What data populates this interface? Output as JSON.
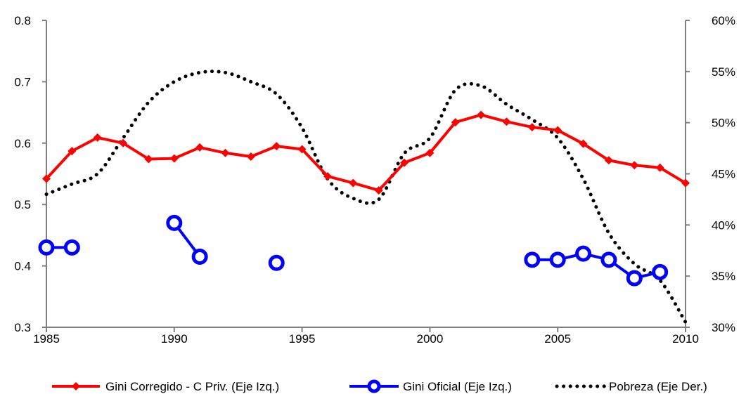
{
  "chart_data": {
    "type": "line",
    "title": "",
    "xlabel": "",
    "ylabel_left": "",
    "ylabel_right": "",
    "x_ticks": [
      "1985",
      "1990",
      "1995",
      "2000",
      "2005",
      "2010"
    ],
    "xlim": [
      1985,
      2010
    ],
    "ylim_left": [
      0.3,
      0.8
    ],
    "y_left_ticks": [
      "0.3",
      "0.4",
      "0.5",
      "0.6",
      "0.7",
      "0.8"
    ],
    "ylim_right": [
      30,
      60
    ],
    "y_right_ticks": [
      "30%",
      "35%",
      "40%",
      "45%",
      "50%",
      "55%",
      "60%"
    ],
    "grid": false,
    "legend_position": "bottom",
    "series": [
      {
        "name": "Gini Corregido - C Priv. (Eje Izq.)",
        "axis": "left",
        "color": "#ff0000",
        "style": "solid-diamond",
        "x": [
          1985,
          1986,
          1987,
          1988,
          1989,
          1990,
          1991,
          1992,
          1993,
          1994,
          1995,
          1996,
          1997,
          1998,
          1999,
          2000,
          2001,
          2002,
          2003,
          2004,
          2005,
          2006,
          2007,
          2008,
          2009,
          2010
        ],
        "y": [
          0.542,
          0.587,
          0.609,
          0.6,
          0.574,
          0.575,
          0.593,
          0.584,
          0.578,
          0.595,
          0.59,
          0.546,
          0.535,
          0.523,
          0.568,
          0.584,
          0.634,
          0.646,
          0.635,
          0.626,
          0.621,
          0.599,
          0.572,
          0.564,
          0.56,
          0.535
        ]
      },
      {
        "name": "Gini Oficial (Eje Izq.)",
        "axis": "left",
        "color": "#0000ff",
        "style": "solid-ring",
        "segments": [
          {
            "x": [
              1985,
              1986
            ],
            "y": [
              0.43,
              0.43
            ]
          },
          {
            "x": [
              1990,
              1991
            ],
            "y": [
              0.47,
              0.415
            ]
          },
          {
            "x": [
              1994
            ],
            "y": [
              0.405
            ]
          },
          {
            "x": [
              2004,
              2005,
              2006,
              2007,
              2008,
              2009
            ],
            "y": [
              0.41,
              0.41,
              0.42,
              0.41,
              0.38,
              0.39
            ]
          }
        ]
      },
      {
        "name": "Pobreza (Eje Der.)",
        "axis": "right",
        "color": "#000000",
        "style": "dotted",
        "x": [
          1985,
          1986,
          1987,
          1988,
          1989,
          1990,
          1991,
          1992,
          1993,
          1994,
          1995,
          1996,
          1997,
          1998,
          1999,
          2000,
          2001,
          2002,
          2003,
          2004,
          2005,
          2006,
          2007,
          2008,
          2009,
          2010
        ],
        "y": [
          43.0,
          44.0,
          45.0,
          48.5,
          52.0,
          54.0,
          54.9,
          54.9,
          54.0,
          52.8,
          49.5,
          44.5,
          42.6,
          42.5,
          47.0,
          48.5,
          53.2,
          53.6,
          51.8,
          50.3,
          48.5,
          44.5,
          39.2,
          36.2,
          34.6,
          30.5
        ]
      }
    ]
  }
}
